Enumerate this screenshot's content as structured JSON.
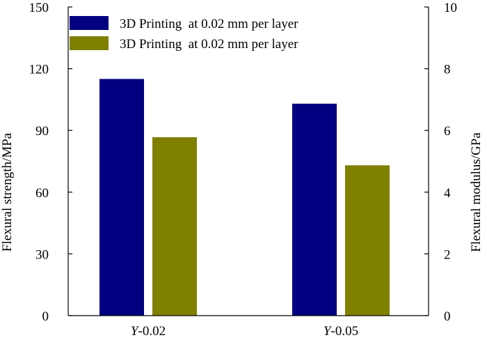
{
  "chart_data": {
    "type": "bar",
    "categories": [
      {
        "italic": "Y",
        "rest": "-0.02"
      },
      {
        "italic": "Y",
        "rest": "-0.05"
      }
    ],
    "series": [
      {
        "name": "3D Printing  at 0.02 mm per layer",
        "axis": "left",
        "color": "#000080",
        "values": [
          115,
          103
        ]
      },
      {
        "name": "3D Printing  at 0.02 mm per layer",
        "axis": "right",
        "color": "#808000",
        "values": [
          5.78,
          4.87
        ]
      }
    ],
    "ylabel_left": "Flexural strength/MPa",
    "ylabel_right": "Flexural modulus/GPa",
    "ylim_left": [
      0,
      150
    ],
    "ylim_right": [
      0,
      10
    ],
    "yticks_left": [
      "0",
      "30",
      "60",
      "90",
      "120",
      "150"
    ],
    "yticks_right": [
      "0",
      "2",
      "4",
      "6",
      "8",
      "10"
    ],
    "legend_position": "top-left",
    "grid": false
  }
}
